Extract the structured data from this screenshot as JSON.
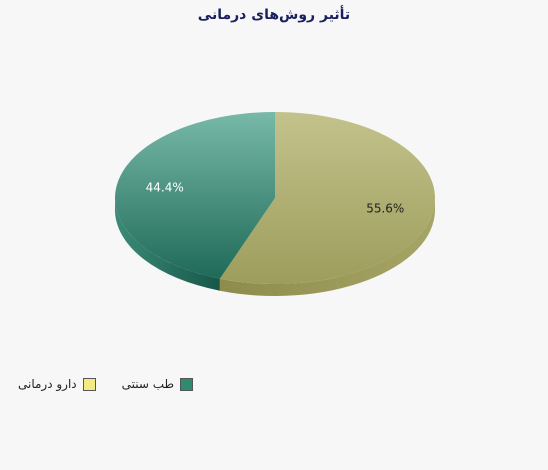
{
  "chart_data": {
    "type": "pie",
    "title": "تأثیر روش‌های درمانی",
    "slices": [
      {
        "label": "دارو درمانی",
        "value": 55.6,
        "value_label": "55.6%",
        "color": "#b5b57a",
        "legend_color": "#f2ea82"
      },
      {
        "label": "طب سنتی",
        "value": 44.4,
        "value_label": "44.4%",
        "color": "#5aae99",
        "legend_color": "#2f8a70"
      }
    ],
    "legend_position": "bottom-left",
    "three_d": true
  }
}
